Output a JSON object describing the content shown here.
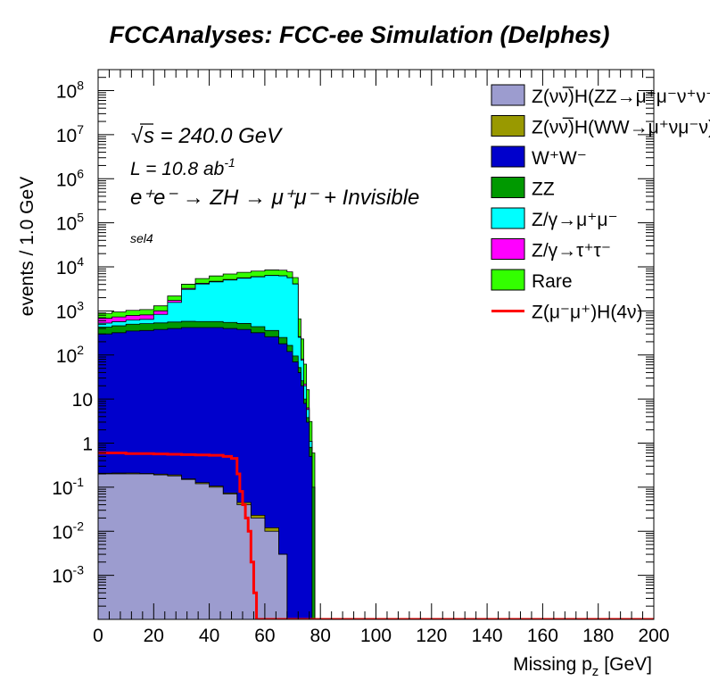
{
  "chart_data": {
    "type": "area",
    "title": "FCCAnalyses: FCC-ee Simulation (Delphes)",
    "xlabel": "Missing p",
    "xlabel_sub": "z",
    "xlabel_unit": "[GeV]",
    "ylabel": "events / 1.0 GeV",
    "xlim": [
      0,
      200
    ],
    "ylim": [
      0.0001,
      300000000
    ],
    "yscale": "log",
    "x_ticks": [
      "0",
      "20",
      "40",
      "60",
      "80",
      "100",
      "120",
      "140",
      "160",
      "180",
      "200"
    ],
    "y_ticks": [
      {
        "base": "10",
        "exp": "-3",
        "value": 0.001
      },
      {
        "base": "10",
        "exp": "-2",
        "value": 0.01
      },
      {
        "base": "10",
        "exp": "-1",
        "value": 0.1
      },
      {
        "base": "1",
        "exp": "",
        "value": 1
      },
      {
        "base": "10",
        "exp": "",
        "value": 10
      },
      {
        "base": "10",
        "exp": "2",
        "value": 100
      },
      {
        "base": "10",
        "exp": "3",
        "value": 1000
      },
      {
        "base": "10",
        "exp": "4",
        "value": 10000
      },
      {
        "base": "10",
        "exp": "5",
        "value": 100000
      },
      {
        "base": "10",
        "exp": "6",
        "value": 1000000
      },
      {
        "base": "10",
        "exp": "7",
        "value": 10000000
      },
      {
        "base": "10",
        "exp": "8",
        "value": 100000000
      }
    ],
    "annotations": {
      "energy_sqrt": "√",
      "energy": "s = 240.0 GeV",
      "lumi": "L = 10.8 ab",
      "lumi_exp": "-1",
      "process": "e⁺e⁻ → ZH → μ⁺μ⁻ + Invisible",
      "selection": "sel4"
    },
    "stack_x": [
      0,
      5,
      10,
      15,
      20,
      25,
      30,
      35,
      40,
      45,
      50,
      55,
      60,
      65,
      68,
      70,
      72,
      73,
      74,
      75,
      76,
      77,
      78
    ],
    "series": [
      {
        "name": "Z(νν̅)H(ZZ→μ⁺μ⁻ν⁺ν⁻)",
        "color": "#9c9ccf",
        "values": [
          0.2,
          0.2,
          0.2,
          0.2,
          0.19,
          0.18,
          0.15,
          0.12,
          0.1,
          0.07,
          0.04,
          0.02,
          0.01,
          0.003,
          0,
          0,
          0,
          0,
          0,
          0,
          0,
          0,
          0
        ]
      },
      {
        "name": "Z(νν̅)H(WW→μ⁺νμ⁻ν)",
        "color": "#999900",
        "values": [
          0.007,
          0.009,
          0.01,
          0.005,
          0.008,
          0.01,
          0.005,
          0.007,
          0.006,
          0.004,
          0.005,
          0.003,
          0.002,
          0,
          0,
          0,
          0,
          0,
          0,
          0,
          0,
          0,
          0
        ]
      },
      {
        "name": "W⁺W⁻",
        "color": "#0000cc",
        "values": [
          300,
          320,
          350,
          360,
          380,
          400,
          420,
          420,
          420,
          400,
          380,
          320,
          260,
          180,
          120,
          70,
          40,
          20,
          8,
          3,
          0.5,
          0,
          0
        ]
      },
      {
        "name": "ZZ",
        "color": "#009900",
        "values": [
          130,
          140,
          150,
          155,
          155,
          160,
          160,
          155,
          155,
          150,
          140,
          120,
          100,
          70,
          45,
          25,
          12,
          6,
          2,
          0.8,
          0.3,
          0.1,
          0
        ]
      },
      {
        "name": "Z/γ→μ⁺μ⁻",
        "color": "#00ffff",
        "values": [
          100,
          110,
          120,
          130,
          300,
          1000,
          2500,
          3500,
          4000,
          4500,
          5000,
          5500,
          6000,
          6000,
          5500,
          4000,
          200,
          50,
          10,
          2,
          0.3,
          0,
          0
        ]
      },
      {
        "name": "Z/γ→τ⁺τ⁻",
        "color": "#ff00ff",
        "values": [
          150,
          160,
          170,
          170,
          170,
          170,
          165,
          160,
          150,
          140,
          120,
          100,
          80,
          50,
          35,
          20,
          10,
          5,
          2,
          0.5,
          0,
          0,
          0
        ]
      },
      {
        "name": "Rare",
        "color": "#33ff00",
        "values": [
          200,
          220,
          240,
          260,
          300,
          450,
          800,
          1200,
          1500,
          1700,
          1900,
          2000,
          2100,
          2100,
          2000,
          1600,
          400,
          150,
          40,
          10,
          2,
          0.5,
          0
        ]
      }
    ],
    "signal": {
      "name": "Z(μ⁻μ⁺)H(4ν)",
      "color": "#ff0000",
      "x": [
        0,
        5,
        10,
        15,
        20,
        25,
        30,
        35,
        40,
        45,
        48,
        50,
        51,
        52,
        53,
        54,
        55,
        56,
        57
      ],
      "values": [
        0.6,
        0.6,
        0.58,
        0.58,
        0.57,
        0.56,
        0.55,
        0.54,
        0.53,
        0.5,
        0.45,
        0.2,
        0.08,
        0.04,
        0.02,
        0.01,
        0.002,
        0.0004,
        5e-05
      ]
    }
  }
}
